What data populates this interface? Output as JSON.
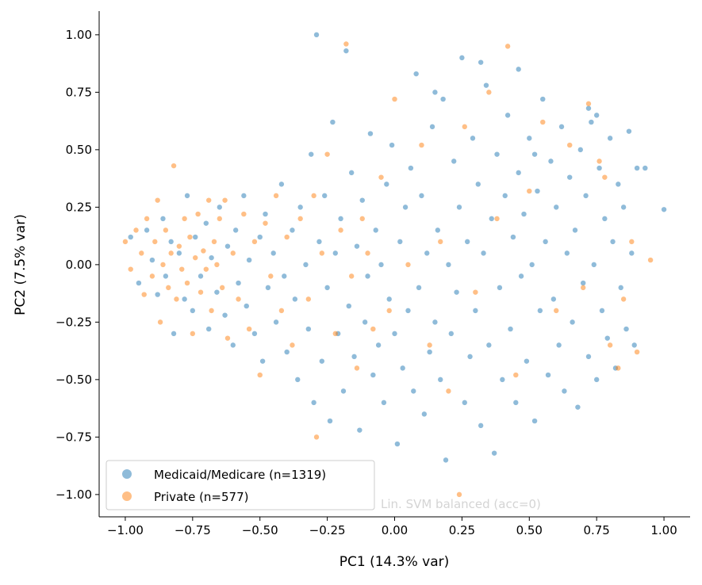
{
  "chart_data": {
    "type": "scatter",
    "title": "",
    "xlabel": "PC1 (14.3% var)",
    "ylabel": "PC2 (7.5% var)",
    "xlim": [
      -1.097,
      1.097
    ],
    "ylim": [
      -1.097,
      1.103
    ],
    "xticks": [
      -1.0,
      -0.75,
      -0.5,
      -0.25,
      0.0,
      0.25,
      0.5,
      0.75,
      1.0
    ],
    "xtick_labels": [
      "−1.00",
      "−0.75",
      "−0.50",
      "−0.25",
      "0.00",
      "0.25",
      "0.50",
      "0.75",
      "1.00"
    ],
    "yticks": [
      -1.0,
      -0.75,
      -0.5,
      -0.25,
      0.0,
      0.25,
      0.5,
      0.75,
      1.0
    ],
    "ytick_labels": [
      "−1.00",
      "−0.75",
      "−0.50",
      "−0.25",
      "0.00",
      "0.25",
      "0.50",
      "0.75",
      "1.00"
    ],
    "grid": false,
    "legend_position": "lower-left",
    "annotation": "Lin. SVM balanced (acc=0)",
    "series": [
      {
        "name": "Medicaid/Medicare (n=1319)",
        "color": "#1f77b4",
        "points": [
          [
            -0.98,
            0.12
          ],
          [
            -0.95,
            -0.08
          ],
          [
            -0.92,
            0.15
          ],
          [
            -0.9,
            0.02
          ],
          [
            -0.88,
            -0.13
          ],
          [
            -0.86,
            0.2
          ],
          [
            -0.85,
            -0.05
          ],
          [
            -0.83,
            0.1
          ],
          [
            -0.82,
            -0.3
          ],
          [
            -0.8,
            0.05
          ],
          [
            -0.78,
            -0.15
          ],
          [
            -0.77,
            0.3
          ],
          [
            -0.75,
            -0.2
          ],
          [
            -0.74,
            0.12
          ],
          [
            -0.72,
            -0.05
          ],
          [
            -0.7,
            0.18
          ],
          [
            -0.69,
            -0.28
          ],
          [
            -0.68,
            0.03
          ],
          [
            -0.66,
            -0.12
          ],
          [
            -0.65,
            0.25
          ],
          [
            -0.63,
            -0.22
          ],
          [
            -0.62,
            0.08
          ],
          [
            -0.6,
            -0.35
          ],
          [
            -0.59,
            0.15
          ],
          [
            -0.58,
            -0.08
          ],
          [
            -0.56,
            0.3
          ],
          [
            -0.55,
            -0.18
          ],
          [
            -0.54,
            0.02
          ],
          [
            -0.52,
            -0.3
          ],
          [
            -0.5,
            0.12
          ],
          [
            -0.49,
            -0.42
          ],
          [
            -0.48,
            0.22
          ],
          [
            -0.47,
            -0.1
          ],
          [
            -0.45,
            0.05
          ],
          [
            -0.44,
            -0.25
          ],
          [
            -0.42,
            0.35
          ],
          [
            -0.41,
            -0.05
          ],
          [
            -0.4,
            -0.38
          ],
          [
            -0.38,
            0.15
          ],
          [
            -0.37,
            -0.15
          ],
          [
            -0.36,
            -0.5
          ],
          [
            -0.35,
            0.25
          ],
          [
            -0.33,
            0.0
          ],
          [
            -0.32,
            -0.28
          ],
          [
            -0.31,
            0.48
          ],
          [
            -0.3,
            -0.6
          ],
          [
            -0.29,
            1.0
          ],
          [
            -0.28,
            0.1
          ],
          [
            -0.27,
            -0.42
          ],
          [
            -0.26,
            0.3
          ],
          [
            -0.25,
            -0.1
          ],
          [
            -0.24,
            -0.68
          ],
          [
            -0.23,
            0.62
          ],
          [
            -0.22,
            0.05
          ],
          [
            -0.21,
            -0.3
          ],
          [
            -0.2,
            0.2
          ],
          [
            -0.19,
            -0.55
          ],
          [
            -0.18,
            0.93
          ],
          [
            -0.17,
            -0.18
          ],
          [
            -0.16,
            0.4
          ],
          [
            -0.15,
            -0.4
          ],
          [
            -0.14,
            0.08
          ],
          [
            -0.13,
            -0.72
          ],
          [
            -0.12,
            0.28
          ],
          [
            -0.11,
            -0.25
          ],
          [
            -0.1,
            -0.05
          ],
          [
            -0.09,
            0.57
          ],
          [
            -0.08,
            -0.48
          ],
          [
            -0.07,
            0.15
          ],
          [
            -0.06,
            -0.35
          ],
          [
            -0.05,
            0.0
          ],
          [
            -0.04,
            -0.6
          ],
          [
            -0.03,
            0.35
          ],
          [
            -0.02,
            -0.15
          ],
          [
            -0.01,
            0.52
          ],
          [
            0.0,
            -0.3
          ],
          [
            0.01,
            -0.78
          ],
          [
            0.02,
            0.1
          ],
          [
            0.03,
            -0.45
          ],
          [
            0.04,
            0.25
          ],
          [
            0.05,
            -0.2
          ],
          [
            0.06,
            0.42
          ],
          [
            0.07,
            -0.55
          ],
          [
            0.08,
            0.83
          ],
          [
            0.09,
            -0.1
          ],
          [
            0.1,
            0.3
          ],
          [
            0.11,
            -0.65
          ],
          [
            0.12,
            0.05
          ],
          [
            0.13,
            -0.38
          ],
          [
            0.14,
            0.6
          ],
          [
            0.15,
            -0.25
          ],
          [
            0.16,
            0.15
          ],
          [
            0.17,
            -0.5
          ],
          [
            0.18,
            0.72
          ],
          [
            0.19,
            -0.85
          ],
          [
            0.2,
            0.0
          ],
          [
            0.21,
            -0.3
          ],
          [
            0.22,
            0.45
          ],
          [
            0.23,
            -0.12
          ],
          [
            0.24,
            0.25
          ],
          [
            0.25,
            0.9
          ],
          [
            0.26,
            -0.6
          ],
          [
            0.27,
            0.1
          ],
          [
            0.28,
            -0.4
          ],
          [
            0.29,
            0.55
          ],
          [
            0.3,
            -0.2
          ],
          [
            0.31,
            0.35
          ],
          [
            0.32,
            -0.7
          ],
          [
            0.33,
            0.05
          ],
          [
            0.34,
            0.78
          ],
          [
            0.35,
            -0.35
          ],
          [
            0.36,
            0.2
          ],
          [
            0.37,
            -0.82
          ],
          [
            0.38,
            0.48
          ],
          [
            0.39,
            -0.1
          ],
          [
            0.4,
            -0.5
          ],
          [
            0.41,
            0.3
          ],
          [
            0.42,
            0.65
          ],
          [
            0.43,
            -0.28
          ],
          [
            0.44,
            0.12
          ],
          [
            0.45,
            -0.6
          ],
          [
            0.46,
            0.4
          ],
          [
            0.47,
            -0.05
          ],
          [
            0.48,
            0.22
          ],
          [
            0.49,
            -0.42
          ],
          [
            0.5,
            0.55
          ],
          [
            0.51,
            0.0
          ],
          [
            0.52,
            -0.68
          ],
          [
            0.53,
            0.32
          ],
          [
            0.54,
            -0.2
          ],
          [
            0.55,
            0.72
          ],
          [
            0.56,
            0.1
          ],
          [
            0.57,
            -0.48
          ],
          [
            0.58,
            0.45
          ],
          [
            0.59,
            -0.15
          ],
          [
            0.6,
            0.25
          ],
          [
            0.61,
            -0.35
          ],
          [
            0.62,
            0.6
          ],
          [
            0.63,
            -0.55
          ],
          [
            0.64,
            0.05
          ],
          [
            0.65,
            0.38
          ],
          [
            0.66,
            -0.25
          ],
          [
            0.67,
            0.15
          ],
          [
            0.68,
            -0.62
          ],
          [
            0.69,
            0.5
          ],
          [
            0.7,
            -0.08
          ],
          [
            0.71,
            0.3
          ],
          [
            0.72,
            -0.4
          ],
          [
            0.73,
            0.62
          ],
          [
            0.74,
            0.0
          ],
          [
            0.75,
            -0.5
          ],
          [
            0.76,
            0.42
          ],
          [
            0.77,
            -0.2
          ],
          [
            0.78,
            0.2
          ],
          [
            0.79,
            -0.32
          ],
          [
            0.8,
            0.55
          ],
          [
            0.81,
            0.1
          ],
          [
            0.82,
            -0.45
          ],
          [
            0.83,
            0.35
          ],
          [
            0.84,
            -0.1
          ],
          [
            0.85,
            0.25
          ],
          [
            0.86,
            -0.28
          ],
          [
            0.87,
            0.58
          ],
          [
            0.88,
            0.05
          ],
          [
            0.89,
            -0.35
          ],
          [
            0.9,
            0.42
          ],
          [
            0.93,
            0.42
          ],
          [
            1.0,
            0.24
          ],
          [
            0.72,
            0.68
          ],
          [
            0.75,
            0.65
          ],
          [
            0.52,
            0.48
          ],
          [
            0.46,
            0.85
          ],
          [
            0.32,
            0.88
          ],
          [
            0.15,
            0.75
          ]
        ]
      },
      {
        "name": "Private (n=577)",
        "color": "#ff7f0e",
        "points": [
          [
            -1.0,
            0.1
          ],
          [
            -0.98,
            -0.02
          ],
          [
            -0.96,
            0.15
          ],
          [
            -0.94,
            0.05
          ],
          [
            -0.93,
            -0.13
          ],
          [
            -0.92,
            0.2
          ],
          [
            -0.9,
            -0.05
          ],
          [
            -0.89,
            0.1
          ],
          [
            -0.88,
            0.28
          ],
          [
            -0.87,
            -0.25
          ],
          [
            -0.86,
            0.0
          ],
          [
            -0.85,
            0.15
          ],
          [
            -0.84,
            -0.1
          ],
          [
            -0.83,
            0.05
          ],
          [
            -0.82,
            0.43
          ],
          [
            -0.81,
            -0.15
          ],
          [
            -0.8,
            0.08
          ],
          [
            -0.79,
            -0.02
          ],
          [
            -0.78,
            0.2
          ],
          [
            -0.77,
            -0.08
          ],
          [
            -0.76,
            0.12
          ],
          [
            -0.75,
            -0.3
          ],
          [
            -0.74,
            0.03
          ],
          [
            -0.73,
            0.22
          ],
          [
            -0.72,
            -0.12
          ],
          [
            -0.71,
            0.06
          ],
          [
            -0.7,
            -0.02
          ],
          [
            -0.69,
            0.28
          ],
          [
            -0.68,
            -0.2
          ],
          [
            -0.67,
            0.1
          ],
          [
            -0.66,
            0.0
          ],
          [
            -0.65,
            0.2
          ],
          [
            -0.64,
            -0.1
          ],
          [
            -0.63,
            0.28
          ],
          [
            -0.62,
            -0.32
          ],
          [
            -0.6,
            0.05
          ],
          [
            -0.58,
            -0.15
          ],
          [
            -0.56,
            0.22
          ],
          [
            -0.54,
            -0.28
          ],
          [
            -0.52,
            0.1
          ],
          [
            -0.5,
            -0.48
          ],
          [
            -0.48,
            0.18
          ],
          [
            -0.46,
            -0.05
          ],
          [
            -0.44,
            0.3
          ],
          [
            -0.42,
            -0.2
          ],
          [
            -0.4,
            0.12
          ],
          [
            -0.38,
            -0.35
          ],
          [
            -0.35,
            0.2
          ],
          [
            -0.32,
            -0.15
          ],
          [
            -0.3,
            0.3
          ],
          [
            -0.29,
            -0.75
          ],
          [
            -0.27,
            0.05
          ],
          [
            -0.25,
            0.48
          ],
          [
            -0.22,
            -0.3
          ],
          [
            -0.2,
            0.15
          ],
          [
            -0.18,
            0.96
          ],
          [
            -0.16,
            -0.05
          ],
          [
            -0.14,
            -0.45
          ],
          [
            -0.12,
            0.2
          ],
          [
            -0.1,
            0.05
          ],
          [
            -0.08,
            -0.28
          ],
          [
            -0.05,
            0.38
          ],
          [
            -0.02,
            -0.2
          ],
          [
            0.0,
            0.72
          ],
          [
            0.05,
            0.0
          ],
          [
            0.1,
            0.52
          ],
          [
            0.13,
            -0.35
          ],
          [
            0.17,
            0.1
          ],
          [
            0.2,
            -0.55
          ],
          [
            0.24,
            -1.0
          ],
          [
            0.26,
            0.6
          ],
          [
            0.3,
            -0.12
          ],
          [
            0.35,
            0.75
          ],
          [
            0.38,
            0.2
          ],
          [
            0.42,
            0.95
          ],
          [
            0.45,
            -0.48
          ],
          [
            0.5,
            0.32
          ],
          [
            0.55,
            0.62
          ],
          [
            0.6,
            -0.2
          ],
          [
            0.65,
            0.52
          ],
          [
            0.7,
            -0.1
          ],
          [
            0.72,
            0.7
          ],
          [
            0.76,
            0.45
          ],
          [
            0.8,
            -0.35
          ],
          [
            0.85,
            -0.15
          ],
          [
            0.88,
            0.1
          ],
          [
            0.9,
            -0.38
          ],
          [
            0.95,
            0.02
          ],
          [
            0.78,
            0.38
          ],
          [
            0.83,
            -0.45
          ]
        ]
      }
    ]
  }
}
